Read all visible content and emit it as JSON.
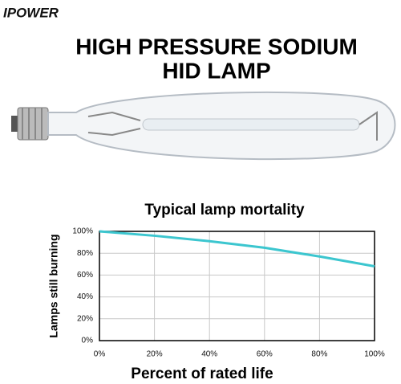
{
  "brand": "IPOWER",
  "headline": [
    "HIGH PRESSURE SODIUM",
    "HID LAMP"
  ],
  "chart_data": {
    "type": "line",
    "title": "Typical lamp mortality",
    "x_label": "Percent of rated life",
    "y_label": "Lamps still burning",
    "x": [
      0,
      20,
      40,
      60,
      80,
      100
    ],
    "series": [
      {
        "name": "Lamps still burning",
        "color": "#3cc6cf",
        "values": [
          100,
          96,
          91,
          85,
          77,
          68
        ]
      }
    ],
    "xlim": [
      0,
      100
    ],
    "ylim": [
      0,
      100
    ],
    "xticks": [
      {
        "value": 0,
        "label": "0%"
      },
      {
        "value": 20,
        "label": "20%"
      },
      {
        "value": 40,
        "label": "40%"
      },
      {
        "value": 60,
        "label": "60%"
      },
      {
        "value": 80,
        "label": "80%"
      },
      {
        "value": 100,
        "label": "100%"
      }
    ],
    "yticks": [
      {
        "value": 0,
        "label": "0%"
      },
      {
        "value": 20,
        "label": "20%"
      },
      {
        "value": 40,
        "label": "40%"
      },
      {
        "value": 60,
        "label": "60%"
      },
      {
        "value": 80,
        "label": "80%"
      },
      {
        "value": 100,
        "label": "100%"
      }
    ],
    "grid": true
  }
}
